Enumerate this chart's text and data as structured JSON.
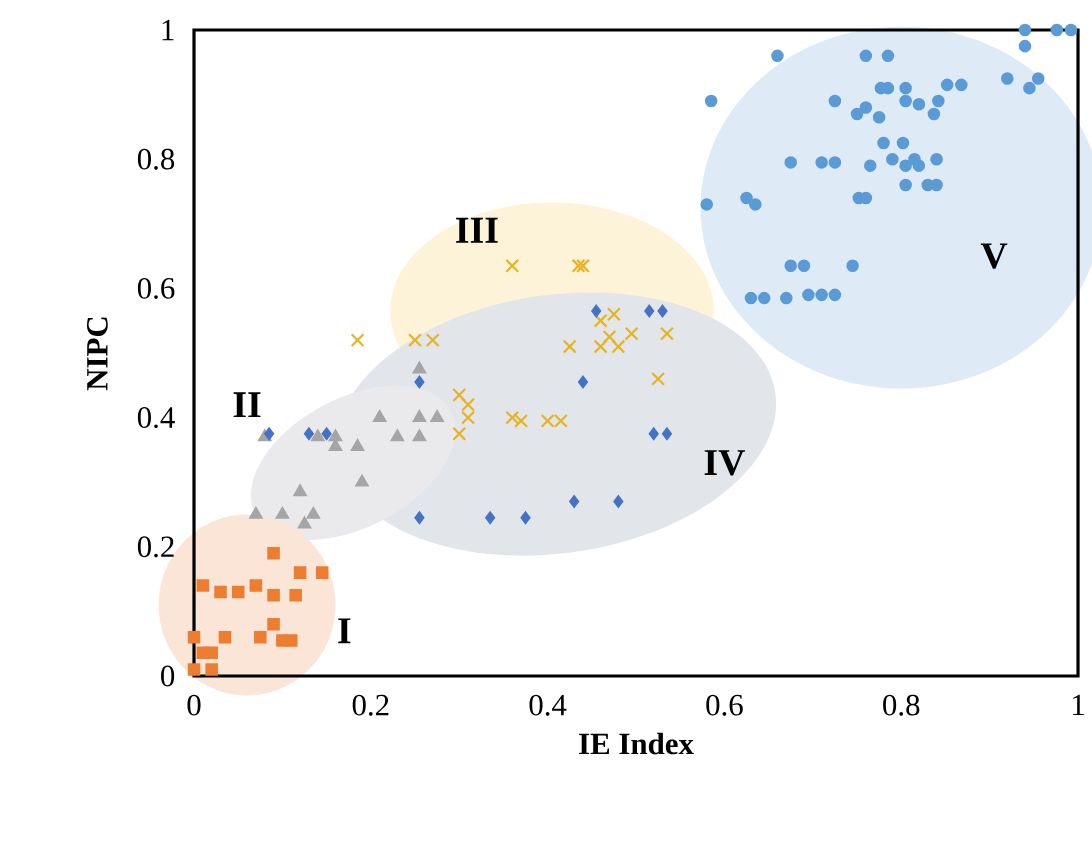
{
  "chart_data": {
    "type": "scatter",
    "xlabel": "IE Index",
    "ylabel": "NIPC",
    "xlim": [
      0,
      1
    ],
    "ylim": [
      0,
      1
    ],
    "xticks": [
      0,
      0.2,
      0.4,
      0.6,
      0.8,
      1
    ],
    "yticks": [
      0,
      0.2,
      0.4,
      0.6,
      0.8,
      1
    ],
    "grid": false,
    "series": [
      {
        "color": "#ed7d31",
        "marker": "square",
        "x": [
          0,
          0.01,
          0.02,
          0,
          0.02,
          0.035,
          0.01,
          0.03,
          0.05,
          0.07,
          0.09,
          0.115,
          0.09,
          0.12,
          0.145,
          0.075,
          0.09,
          0.1,
          0.11
        ],
        "values": [
          0.06,
          0.036,
          0.036,
          0.01,
          0.01,
          0.06,
          0.14,
          0.13,
          0.13,
          0.14,
          0.125,
          0.125,
          0.19,
          0.16,
          0.16,
          0.06,
          0.08,
          0.055,
          0.055
        ]
      },
      {
        "color": "#a5a5a5",
        "marker": "triangle",
        "x": [
          0.08,
          0.07,
          0.1,
          0.12,
          0.125,
          0.135,
          0.14,
          0.16,
          0.185,
          0.19,
          0.21,
          0.23,
          0.255,
          0.255,
          0.275,
          0.255,
          0.16
        ],
        "values": [
          0.37,
          0.25,
          0.25,
          0.285,
          0.235,
          0.25,
          0.37,
          0.355,
          0.355,
          0.3,
          0.4,
          0.37,
          0.4,
          0.37,
          0.4,
          0.475,
          0.37
        ]
      },
      {
        "color": "#e6b422",
        "marker": "cross",
        "x": [
          0.185,
          0.25,
          0.27,
          0.36,
          0.435,
          0.44,
          0.3,
          0.31,
          0.3,
          0.31,
          0.36,
          0.37,
          0.4,
          0.415,
          0.425,
          0.46,
          0.475,
          0.46,
          0.48,
          0.495,
          0.535,
          0.525,
          0.47
        ],
        "values": [
          0.52,
          0.52,
          0.52,
          0.635,
          0.635,
          0.635,
          0.435,
          0.42,
          0.375,
          0.4,
          0.4,
          0.395,
          0.395,
          0.395,
          0.51,
          0.55,
          0.56,
          0.51,
          0.51,
          0.53,
          0.53,
          0.46,
          0.525
        ]
      },
      {
        "color": "#4472c4",
        "marker": "diamond",
        "x": [
          0.085,
          0.13,
          0.15,
          0.255,
          0.255,
          0.335,
          0.375,
          0.43,
          0.48,
          0.44,
          0.455,
          0.515,
          0.53,
          0.52,
          0.535
        ],
        "values": [
          0.375,
          0.375,
          0.375,
          0.455,
          0.245,
          0.245,
          0.245,
          0.27,
          0.27,
          0.455,
          0.565,
          0.565,
          0.565,
          0.375,
          0.375
        ]
      },
      {
        "color": "#5b9bd5",
        "marker": "circle",
        "x": [
          0.58,
          0.585,
          0.66,
          0.625,
          0.635,
          0.63,
          0.645,
          0.67,
          0.695,
          0.71,
          0.725,
          0.675,
          0.69,
          0.745,
          0.675,
          0.71,
          0.725,
          0.725,
          0.75,
          0.76,
          0.775,
          0.76,
          0.785,
          0.777,
          0.785,
          0.805,
          0.805,
          0.82,
          0.842,
          0.837,
          0.852,
          0.868,
          0.765,
          0.752,
          0.76,
          0.78,
          0.802,
          0.79,
          0.805,
          0.82,
          0.815,
          0.84,
          0.805,
          0.83,
          0.84,
          0.92,
          0.945,
          0.955,
          0.94,
          0.94,
          0.976,
          0.992
        ],
        "values": [
          0.73,
          0.89,
          0.96,
          0.74,
          0.73,
          0.585,
          0.585,
          0.585,
          0.59,
          0.59,
          0.59,
          0.635,
          0.635,
          0.635,
          0.795,
          0.795,
          0.795,
          0.89,
          0.87,
          0.88,
          0.865,
          0.96,
          0.96,
          0.91,
          0.91,
          0.91,
          0.89,
          0.885,
          0.89,
          0.87,
          0.915,
          0.915,
          0.79,
          0.74,
          0.74,
          0.825,
          0.825,
          0.8,
          0.79,
          0.79,
          0.8,
          0.8,
          0.76,
          0.76,
          0.76,
          0.925,
          0.91,
          0.925,
          0.975,
          1.0,
          1.0,
          1.0
        ]
      }
    ],
    "annotations": [
      "I",
      "II",
      "III",
      "IV",
      "V"
    ]
  }
}
